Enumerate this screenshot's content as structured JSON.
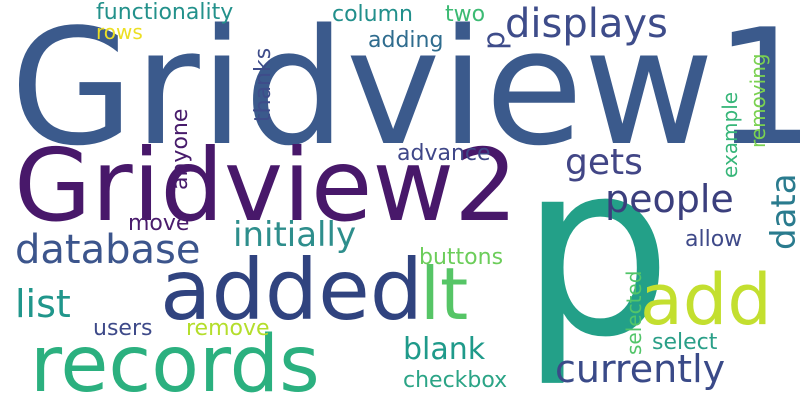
{
  "words": {
    "gridview1": "Gridview1",
    "gridview2": "Gridview2",
    "p": "p",
    "added": "added",
    "records": "records",
    "add": "add",
    "it": "lt",
    "displays": "displays",
    "database": "database",
    "people": "people",
    "currently": "currently",
    "gets": "gets",
    "initially": "initially",
    "list": "list",
    "blank": "blank",
    "functionality": "functionality",
    "column": "column",
    "two": "two",
    "rows": "rows",
    "adding": "adding",
    "advance": "advance",
    "move": "move",
    "buttons": "buttons",
    "allow": "allow",
    "users": "users",
    "remove": "remove",
    "select": "select",
    "checkbox": "checkbox",
    "thanks": "thanks",
    "anyone": "anyone",
    "example": "example",
    "removing": "removing",
    "data": "data",
    "selected": "selected",
    "p2": "p"
  }
}
